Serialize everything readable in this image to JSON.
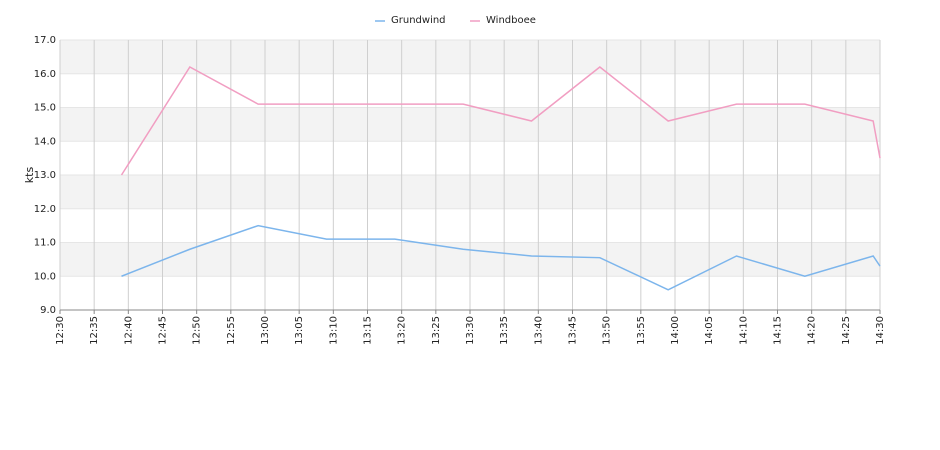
{
  "chart_data": {
    "type": "line",
    "y_label": "kts",
    "x": [
      "12:39",
      "12:49",
      "12:59",
      "13:09",
      "13:19",
      "13:29",
      "13:39",
      "13:49",
      "13:59",
      "14:09",
      "14:19",
      "14:29",
      "14:30"
    ],
    "series": [
      {
        "name": "Grundwind",
        "color": "#7cb5ec",
        "values": [
          10.0,
          10.8,
          11.5,
          11.1,
          11.1,
          10.8,
          10.6,
          10.55,
          9.6,
          10.6,
          10.0,
          10.6,
          10.3
        ]
      },
      {
        "name": "Windboee",
        "color": "#f19ec2",
        "values": [
          13.0,
          16.2,
          15.1,
          15.1,
          15.1,
          15.1,
          14.6,
          16.2,
          14.6,
          15.1,
          15.1,
          14.6,
          13.5
        ]
      }
    ],
    "xlim": [
      "12:30",
      "14:30"
    ],
    "xticks": [
      "12:30",
      "12:35",
      "12:40",
      "12:45",
      "12:50",
      "12:55",
      "13:00",
      "13:05",
      "13:10",
      "13:15",
      "13:20",
      "13:25",
      "13:30",
      "13:35",
      "13:40",
      "13:45",
      "13:50",
      "13:55",
      "14:00",
      "14:05",
      "14:10",
      "14:15",
      "14:20",
      "14:25",
      "14:30"
    ],
    "ylim": [
      9,
      17
    ],
    "yticks": [
      {
        "value": 9,
        "label": "9.0"
      },
      {
        "value": 10,
        "label": "10.0"
      },
      {
        "value": 11,
        "label": "11.0"
      },
      {
        "value": 12,
        "label": "12.0"
      },
      {
        "value": 13,
        "label": "13.0"
      },
      {
        "value": 14,
        "label": "14.0"
      },
      {
        "value": 15,
        "label": "15.0"
      },
      {
        "value": 16,
        "label": "16.0"
      },
      {
        "value": 17,
        "label": "17.0"
      }
    ],
    "grid": true,
    "legend": "top"
  }
}
